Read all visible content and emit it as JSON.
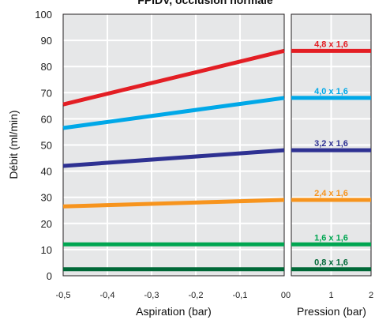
{
  "chart_data": {
    "type": "line",
    "title": "FPIDV, occlusion normale",
    "ylabel": "Débit (ml/min)",
    "ylim": [
      0,
      100
    ],
    "yticks": [
      "0",
      "10",
      "20",
      "30",
      "40",
      "50",
      "60",
      "70",
      "80",
      "90",
      "100"
    ],
    "grid": true,
    "panels": [
      {
        "xlabel": "Aspiration (bar)",
        "xlim": [
          -0.5,
          0
        ],
        "xticks": [
          "-0,5",
          "-0,4",
          "-0,3",
          "-0,2",
          "-0,1",
          "0"
        ]
      },
      {
        "xlabel": "Pression (bar)",
        "xlim": [
          0,
          2
        ],
        "xticks": [
          "0",
          "1",
          "2"
        ]
      }
    ],
    "series": [
      {
        "name": "4,8 x 1,6",
        "color": "#e31e24",
        "aspiration": {
          "x": [
            -0.5,
            0
          ],
          "y": [
            65.5,
            86
          ]
        },
        "pression": {
          "x": [
            0,
            2
          ],
          "y": [
            86,
            86
          ]
        }
      },
      {
        "name": "4,0 x 1,6",
        "color": "#00a8e8",
        "aspiration": {
          "x": [
            -0.5,
            0
          ],
          "y": [
            56.5,
            68
          ]
        },
        "pression": {
          "x": [
            0,
            2
          ],
          "y": [
            68,
            68
          ]
        }
      },
      {
        "name": "3,2 x 1,6",
        "color": "#2e3192",
        "aspiration": {
          "x": [
            -0.5,
            0
          ],
          "y": [
            42,
            48
          ]
        },
        "pression": {
          "x": [
            0,
            2
          ],
          "y": [
            48,
            48
          ]
        }
      },
      {
        "name": "2,4 x 1,6",
        "color": "#f7941d",
        "aspiration": {
          "x": [
            -0.5,
            0
          ],
          "y": [
            26.5,
            29
          ]
        },
        "pression": {
          "x": [
            0,
            2
          ],
          "y": [
            29,
            29
          ]
        }
      },
      {
        "name": "1,6 x 1,6",
        "color": "#00a651",
        "aspiration": {
          "x": [
            -0.5,
            0
          ],
          "y": [
            12,
            12
          ]
        },
        "pression": {
          "x": [
            0,
            2
          ],
          "y": [
            12,
            12
          ]
        }
      },
      {
        "name": "0,8 x 1,6",
        "color": "#006837",
        "aspiration": {
          "x": [
            -0.5,
            0
          ],
          "y": [
            2.5,
            2.5
          ]
        },
        "pression": {
          "x": [
            0,
            2
          ],
          "y": [
            2.5,
            2.5
          ]
        }
      }
    ]
  }
}
